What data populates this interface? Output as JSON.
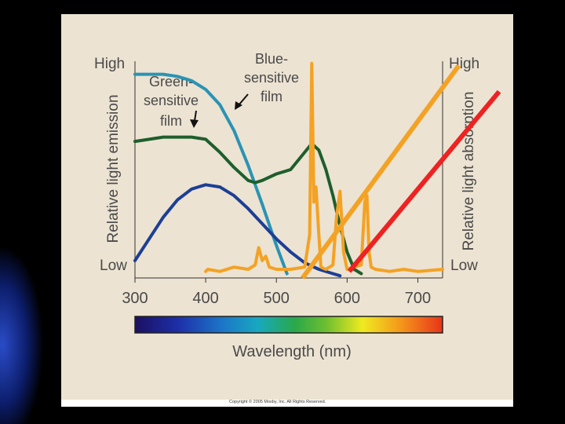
{
  "chart_data": {
    "type": "line",
    "xlabel": "Wavelength (nm)",
    "ylabel_left": "Relative light emission",
    "ylabel_right": "Relative light absorption",
    "xticks": [
      "300",
      "400",
      "500",
      "600",
      "700"
    ],
    "xlim": [
      300,
      735
    ],
    "y_left_ticks": {
      "high": "High",
      "low": "Low"
    },
    "y_right_ticks": {
      "high": "High",
      "low": "Low"
    },
    "grid": false,
    "spectrum_bar": true,
    "annotations": {
      "blue": [
        "Blue-",
        "sensitive",
        "film"
      ],
      "green": [
        "Green-",
        "sensitive",
        "film"
      ]
    },
    "series": [
      {
        "name": "Blue-sensitive film",
        "color": "#2a93b4",
        "x": [
          300,
          320,
          340,
          360,
          380,
          400,
          420,
          440,
          460,
          480,
          500,
          515
        ],
        "y": [
          0.94,
          0.94,
          0.94,
          0.93,
          0.91,
          0.87,
          0.8,
          0.68,
          0.52,
          0.34,
          0.15,
          0.02
        ]
      },
      {
        "name": "Green-sensitive film",
        "color": "#1e5e2c",
        "x": [
          300,
          320,
          340,
          360,
          380,
          400,
          420,
          440,
          460,
          470,
          480,
          500,
          510,
          520,
          540,
          550,
          560,
          570,
          580,
          590,
          600,
          610,
          620
        ],
        "y": [
          0.63,
          0.64,
          0.65,
          0.65,
          0.65,
          0.64,
          0.58,
          0.51,
          0.45,
          0.44,
          0.45,
          0.48,
          0.49,
          0.5,
          0.58,
          0.62,
          0.59,
          0.5,
          0.38,
          0.24,
          0.12,
          0.04,
          0.02
        ]
      },
      {
        "name": "",
        "color": "#1c3f95",
        "x": [
          300,
          320,
          340,
          360,
          380,
          400,
          420,
          440,
          460,
          480,
          500,
          520,
          540,
          560,
          580,
          590
        ],
        "y": [
          0.08,
          0.18,
          0.28,
          0.36,
          0.41,
          0.43,
          0.42,
          0.38,
          0.32,
          0.25,
          0.18,
          0.12,
          0.07,
          0.04,
          0.02,
          0.01
        ]
      },
      {
        "name": "",
        "color": "#f4a224",
        "x": [
          400,
          403,
          420,
          440,
          460,
          470,
          475,
          480,
          485,
          490,
          500,
          520,
          540,
          547,
          550,
          553,
          556,
          560,
          563,
          570,
          580,
          585,
          590,
          595,
          600,
          620,
          625,
          628,
          631,
          634,
          640,
          660,
          680,
          700,
          735
        ],
        "y": [
          0.03,
          0.04,
          0.03,
          0.05,
          0.04,
          0.06,
          0.14,
          0.08,
          0.1,
          0.05,
          0.04,
          0.04,
          0.05,
          0.2,
          0.99,
          0.35,
          0.42,
          0.2,
          0.05,
          0.04,
          0.06,
          0.28,
          0.4,
          0.12,
          0.04,
          0.06,
          0.35,
          0.38,
          0.12,
          0.05,
          0.04,
          0.03,
          0.04,
          0.03,
          0.04
        ]
      }
    ],
    "overlay_lines": [
      {
        "color": "#f4a224",
        "from": [
          537,
          0.0
        ],
        "to": [
          758,
          0.98
        ]
      },
      {
        "color": "#ee2222",
        "from": [
          603,
          0.03
        ],
        "to": [
          815,
          0.86
        ]
      }
    ]
  },
  "footer": {
    "copyright": "Copyright © 2005 Mosby, Inc. All Rights Reserved."
  }
}
